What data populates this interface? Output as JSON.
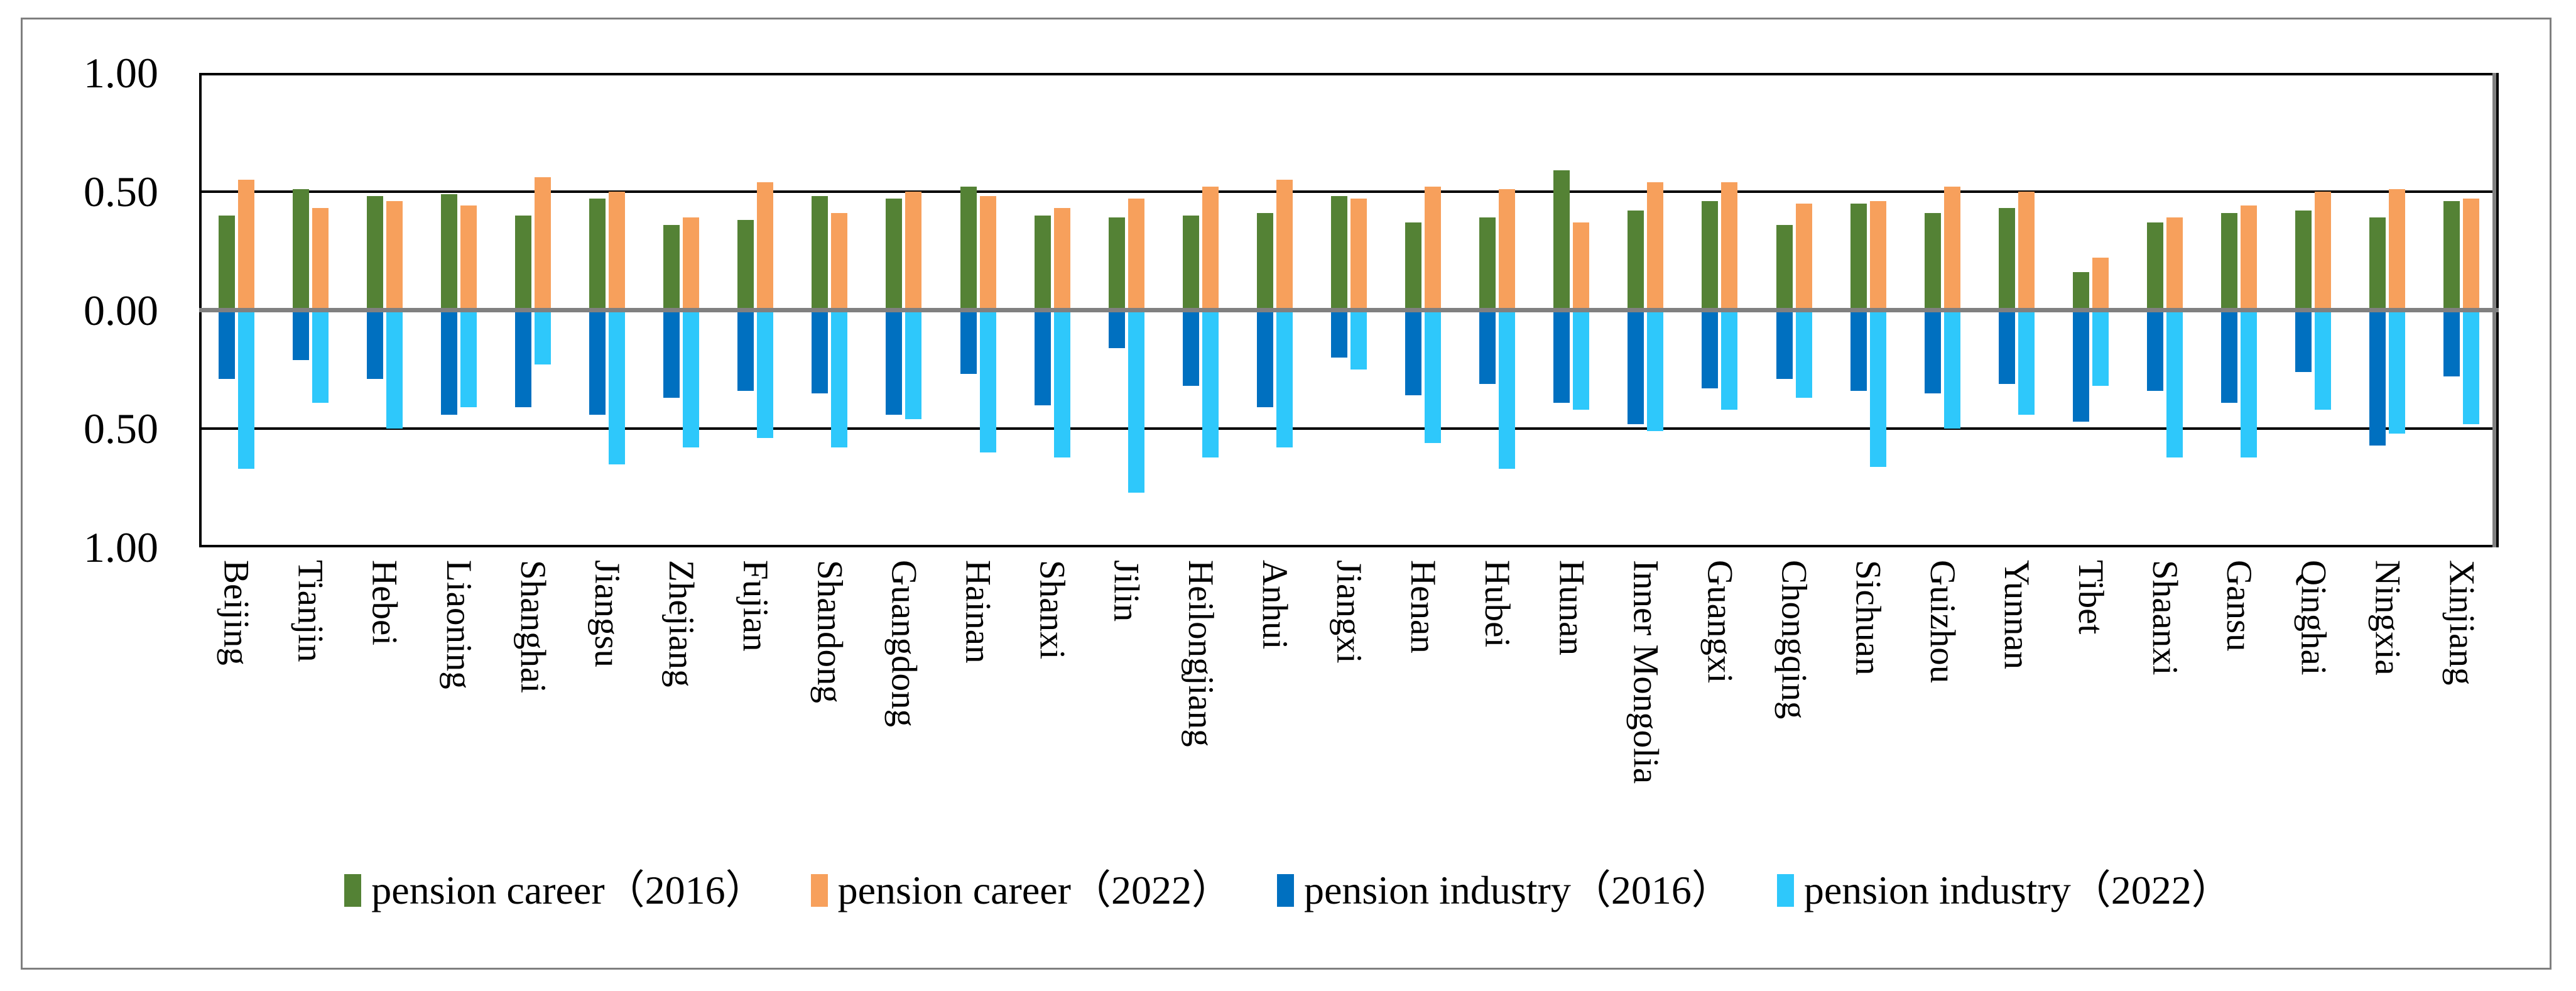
{
  "figure": {
    "background_color": "#ffffff",
    "border_color": "#7f7f7f",
    "frame_color": "#000000",
    "zero_line_color": "#808080"
  },
  "y_axis": {
    "tick_labels": [
      "1.00",
      "0.50",
      "0.00",
      "0.50",
      "1.00"
    ],
    "tick_values": [
      1.0,
      0.5,
      0.0,
      -0.5,
      -1.0
    ]
  },
  "chart_data": {
    "type": "bar",
    "title": "",
    "xlabel": "",
    "ylabel": "",
    "ylim": [
      -1.0,
      1.0
    ],
    "ytick_interval": 0.5,
    "grid": true,
    "legend_position": "bottom",
    "orientation": "mirrored: career series plotted upward, industry series plotted downward",
    "categories": [
      "Beijing",
      "Tianjin",
      "Hebei",
      "Liaoning",
      "Shanghai",
      "Jiangsu",
      "Zhejiang",
      "Fujian",
      "Shandong",
      "Guangdong",
      "Hainan",
      "Shanxi",
      "Jilin",
      "Heilongjiang",
      "Anhui",
      "Jiangxi",
      "Henan",
      "Hubei",
      "Hunan",
      "Inner Mongolia",
      "Guangxi",
      "Chongqing",
      "Sichuan",
      "Guizhou",
      "Yunnan",
      "Tibet",
      "Shaanxi",
      "Gansu",
      "Qinghai",
      "Ningxia",
      "Xinjiang"
    ],
    "series": [
      {
        "name": "pension career（2016）",
        "color": "#548235",
        "column": 0,
        "values": [
          0.4,
          0.51,
          0.48,
          0.49,
          0.4,
          0.47,
          0.36,
          0.38,
          0.48,
          0.47,
          0.52,
          0.4,
          0.39,
          0.4,
          0.41,
          0.48,
          0.37,
          0.39,
          0.59,
          0.42,
          0.46,
          0.36,
          0.45,
          0.41,
          0.43,
          0.16,
          0.37,
          0.41,
          0.42,
          0.39,
          0.46
        ]
      },
      {
        "name": "pension career（2022）",
        "color": "#F7A05C",
        "column": 1,
        "values": [
          0.55,
          0.43,
          0.46,
          0.44,
          0.56,
          0.5,
          0.39,
          0.54,
          0.41,
          0.5,
          0.48,
          0.43,
          0.47,
          0.52,
          0.55,
          0.47,
          0.52,
          0.51,
          0.37,
          0.54,
          0.54,
          0.45,
          0.46,
          0.52,
          0.5,
          0.22,
          0.39,
          0.44,
          0.5,
          0.51,
          0.47
        ]
      },
      {
        "name": "pension industry（2016）",
        "color": "#0070C0",
        "column": 0,
        "values": [
          -0.29,
          -0.21,
          -0.29,
          -0.44,
          -0.41,
          -0.44,
          -0.37,
          -0.34,
          -0.35,
          -0.44,
          -0.27,
          -0.4,
          -0.16,
          -0.32,
          -0.41,
          -0.2,
          -0.36,
          -0.31,
          -0.39,
          -0.48,
          -0.33,
          -0.29,
          -0.34,
          -0.35,
          -0.31,
          -0.47,
          -0.34,
          -0.39,
          -0.26,
          -0.57,
          -0.28
        ]
      },
      {
        "name": "pension industry（2022）",
        "color": "#2EC8FB",
        "column": 1,
        "values": [
          -0.67,
          -0.39,
          -0.5,
          -0.41,
          -0.23,
          -0.65,
          -0.58,
          -0.54,
          -0.58,
          -0.46,
          -0.6,
          -0.62,
          -0.77,
          -0.62,
          -0.58,
          -0.25,
          -0.56,
          -0.67,
          -0.42,
          -0.51,
          -0.42,
          -0.37,
          -0.66,
          -0.5,
          -0.44,
          -0.32,
          -0.62,
          -0.62,
          -0.42,
          -0.52,
          -0.48
        ]
      }
    ]
  },
  "legend": {
    "items": [
      {
        "label": "pension career（2016）",
        "color": "#548235"
      },
      {
        "label": "pension career（2022）",
        "color": "#F7A05C"
      },
      {
        "label": "pension industry（2016）",
        "color": "#0070C0"
      },
      {
        "label": "pension industry（2022）",
        "color": "#2EC8FB"
      }
    ]
  }
}
